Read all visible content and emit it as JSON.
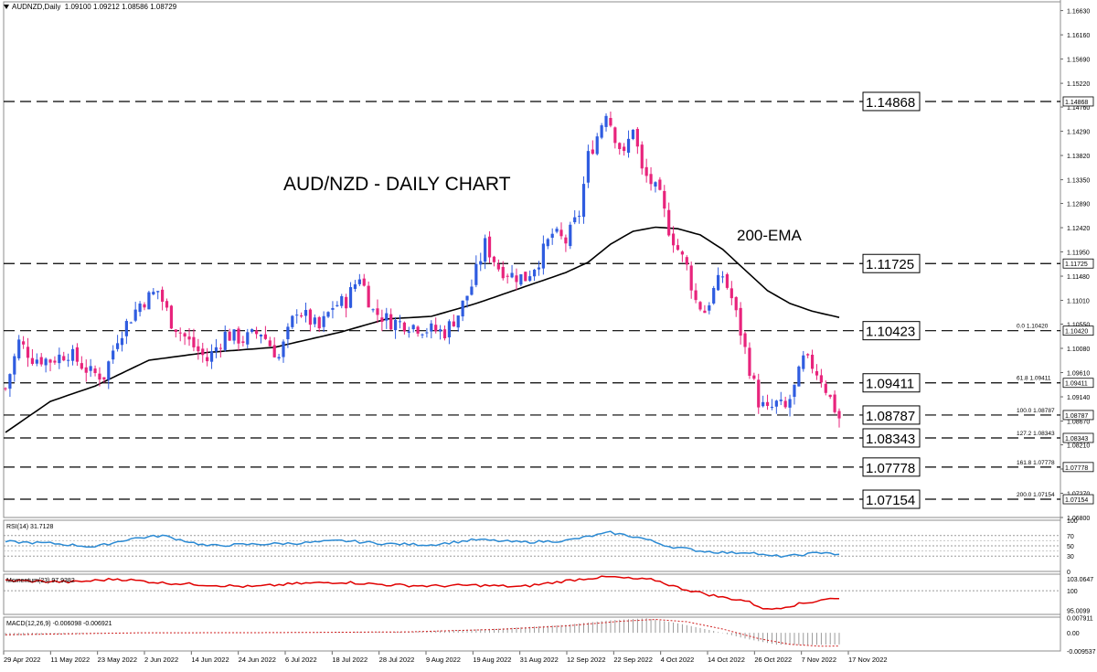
{
  "header": {
    "symbol": "AUDNZD,Daily",
    "ohlc": "1.09100 1.09212 1.08586 1.08729"
  },
  "colors": {
    "bull": "#2f5ce0",
    "bear": "#e8247c",
    "ema": "#000000",
    "rsi": "#2a8ad4",
    "momentum": "#e00000",
    "macd_signal": "#d02020",
    "macd_hist": "#909090",
    "level_line": "#000000"
  },
  "chart_data": [
    {
      "type": "candlestick",
      "title": "AUD/NZD - DAILY CHART",
      "ema_label": "200-EMA",
      "ylim": [
        1.068,
        1.168
      ],
      "y_ticks": [
        "1.16630",
        "1.16160",
        "1.15690",
        "1.15220",
        "1.14760",
        "1.14290",
        "1.13820",
        "1.13350",
        "1.12890",
        "1.12420",
        "1.11950",
        "1.11480",
        "1.11010",
        "1.10550",
        "1.10080",
        "1.09610",
        "1.09140",
        "1.08670",
        "1.08210",
        "1.07740",
        "1.07270",
        "1.06800"
      ],
      "x_labels": [
        "29 Apr 2022",
        "11 May 2022",
        "23 May 2022",
        "2 Jun 2022",
        "14 Jun 2022",
        "24 Jun 2022",
        "6 Jul 2022",
        "18 Jul 2022",
        "28 Jul 2022",
        "9 Aug 2022",
        "19 Aug 2022",
        "31 Aug 2022",
        "12 Sep 2022",
        "22 Sep 2022",
        "4 Oct 2022",
        "14 Oct 2022",
        "26 Oct 2022",
        "7 Nov 2022",
        "17 Nov 2022"
      ],
      "levels": [
        {
          "value": 1.14868,
          "label": "1.14868",
          "axis_label": "1.14868",
          "fib": ""
        },
        {
          "value": 1.11725,
          "label": "1.11725",
          "axis_label": "1.11725",
          "fib": ""
        },
        {
          "value": 1.10423,
          "label": "1.10423",
          "axis_label": "1.10420",
          "fib": "0.0 | 1.10420"
        },
        {
          "value": 1.09411,
          "label": "1.09411",
          "axis_label": "1.09411",
          "fib": "61.8 | 1.09411"
        },
        {
          "value": 1.08787,
          "label": "1.08787",
          "axis_label": "1.08787",
          "fib": "100.0 | 1.08787"
        },
        {
          "value": 1.08343,
          "label": "1.08343",
          "axis_label": "1.08343",
          "fib": "127.2 | 1.08343"
        },
        {
          "value": 1.07778,
          "label": "1.07778",
          "axis_label": "1.07778",
          "fib": "161.8 | 1.07778"
        },
        {
          "value": 1.07154,
          "label": "1.07154",
          "axis_label": "1.07154",
          "fib": "200.0 | 1.07154"
        }
      ],
      "current_price": "1.08729",
      "close_anchors": [
        [
          0,
          1.093
        ],
        [
          3,
          1.102
        ],
        [
          6,
          1.099
        ],
        [
          10,
          1.0985
        ],
        [
          14,
          1.1
        ],
        [
          19,
          1.096
        ],
        [
          22,
          1.0955
        ],
        [
          25,
          1.103
        ],
        [
          30,
          1.1095
        ],
        [
          34,
          1.112
        ],
        [
          37,
          1.106
        ],
        [
          41,
          1.102
        ],
        [
          45,
          1.0985
        ],
        [
          49,
          1.1035
        ],
        [
          53,
          1.1025
        ],
        [
          57,
          1.104
        ],
        [
          61,
          1.099
        ],
        [
          65,
          1.1085
        ],
        [
          70,
          1.1045
        ],
        [
          73,
          1.109
        ],
        [
          76,
          1.11
        ],
        [
          79,
          1.115
        ],
        [
          82,
          1.108
        ],
        [
          86,
          1.106
        ],
        [
          90,
          1.1055
        ],
        [
          94,
          1.1045
        ],
        [
          98,
          1.104
        ],
        [
          101,
          1.1075
        ],
        [
          104,
          1.113
        ],
        [
          107,
          1.121
        ],
        [
          110,
          1.1165
        ],
        [
          113,
          1.115
        ],
        [
          116,
          1.1145
        ],
        [
          119,
          1.118
        ],
        [
          122,
          1.123
        ],
        [
          125,
          1.1215
        ],
        [
          128,
          1.127
        ],
        [
          130,
          1.138
        ],
        [
          132,
          1.142
        ],
        [
          134,
          1.147
        ],
        [
          136,
          1.142
        ],
        [
          138,
          1.138
        ],
        [
          140,
          1.144
        ],
        [
          142,
          1.135
        ],
        [
          144,
          1.133
        ],
        [
          146,
          1.13
        ],
        [
          148,
          1.124
        ],
        [
          150,
          1.12
        ],
        [
          152,
          1.1165
        ],
        [
          154,
          1.11
        ],
        [
          156,
          1.108
        ],
        [
          158,
          1.112
        ],
        [
          160,
          1.115
        ],
        [
          162,
          1.1105
        ],
        [
          164,
          1.104
        ],
        [
          166,
          1.097
        ],
        [
          168,
          1.0905
        ],
        [
          170,
          1.0885
        ],
        [
          172,
          1.09
        ],
        [
          174,
          1.089
        ],
        [
          176,
          1.093
        ],
        [
          178,
          1.0985
        ],
        [
          180,
          1.0975
        ],
        [
          182,
          1.095
        ],
        [
          184,
          1.091
        ],
        [
          186,
          1.0873
        ]
      ],
      "ema_anchors": [
        [
          0,
          1.0845
        ],
        [
          10,
          1.0905
        ],
        [
          20,
          1.0935
        ],
        [
          32,
          1.0985
        ],
        [
          45,
          1.1
        ],
        [
          60,
          1.101
        ],
        [
          75,
          1.104
        ],
        [
          85,
          1.1065
        ],
        [
          95,
          1.107
        ],
        [
          105,
          1.1095
        ],
        [
          115,
          1.1125
        ],
        [
          125,
          1.1155
        ],
        [
          130,
          1.1175
        ],
        [
          135,
          1.121
        ],
        [
          140,
          1.1235
        ],
        [
          145,
          1.1243
        ],
        [
          150,
          1.124
        ],
        [
          155,
          1.1228
        ],
        [
          160,
          1.12
        ],
        [
          165,
          1.116
        ],
        [
          170,
          1.112
        ],
        [
          175,
          1.1095
        ],
        [
          180,
          1.108
        ],
        [
          186,
          1.1068
        ]
      ]
    },
    {
      "type": "line",
      "indicator": "RSI(14) 31.7128",
      "ylim": [
        0,
        100
      ],
      "y_ticks": [
        "100",
        "70",
        "50",
        "30",
        "0"
      ],
      "levels": [
        70,
        50,
        30
      ],
      "anchors": [
        [
          0,
          58
        ],
        [
          10,
          55
        ],
        [
          20,
          48
        ],
        [
          28,
          64
        ],
        [
          35,
          70
        ],
        [
          45,
          50
        ],
        [
          55,
          53
        ],
        [
          65,
          55
        ],
        [
          75,
          60
        ],
        [
          85,
          54
        ],
        [
          95,
          52
        ],
        [
          105,
          62
        ],
        [
          115,
          57
        ],
        [
          125,
          60
        ],
        [
          130,
          68
        ],
        [
          135,
          76
        ],
        [
          142,
          65
        ],
        [
          148,
          49
        ],
        [
          155,
          40
        ],
        [
          162,
          36
        ],
        [
          166,
          38
        ],
        [
          170,
          30
        ],
        [
          175,
          30
        ],
        [
          180,
          35
        ],
        [
          183,
          38
        ],
        [
          186,
          31.7
        ]
      ]
    },
    {
      "type": "line",
      "indicator": "Momentum(23) 97.9382",
      "ylim": [
        94.0,
        104.2
      ],
      "y_ticks": [
        "103.0647",
        "100",
        "95.0099"
      ],
      "anchors": [
        [
          0,
          102.6
        ],
        [
          15,
          102.2
        ],
        [
          25,
          103.0
        ],
        [
          35,
          102.0
        ],
        [
          45,
          101.5
        ],
        [
          55,
          101.0
        ],
        [
          65,
          101.8
        ],
        [
          75,
          102.2
        ],
        [
          85,
          101.5
        ],
        [
          95,
          101.2
        ],
        [
          105,
          101.4
        ],
        [
          115,
          101.0
        ],
        [
          125,
          102.5
        ],
        [
          130,
          103.2
        ],
        [
          135,
          103.5
        ],
        [
          140,
          103.0
        ],
        [
          145,
          102.7
        ],
        [
          150,
          100.8
        ],
        [
          155,
          99.5
        ],
        [
          160,
          98.3
        ],
        [
          165,
          97.5
        ],
        [
          170,
          95.2
        ],
        [
          175,
          96.2
        ],
        [
          180,
          97.2
        ],
        [
          183,
          98.0
        ],
        [
          186,
          97.9
        ]
      ]
    },
    {
      "type": "bar",
      "indicator": "MACD(12,26,9) -0.006098 -0.006921",
      "ylim": [
        -0.0095,
        0.0082
      ],
      "y_ticks": [
        "0.007911",
        "0.00",
        "-0.009537"
      ],
      "hist_anchors": [
        [
          0,
          -0.0015
        ],
        [
          30,
          0.0002
        ],
        [
          60,
          0.0001
        ],
        [
          90,
          0.0006
        ],
        [
          110,
          0.0022
        ],
        [
          125,
          0.0042
        ],
        [
          135,
          0.0066
        ],
        [
          143,
          0.0076
        ],
        [
          150,
          0.005
        ],
        [
          158,
          0.001
        ],
        [
          165,
          -0.003
        ],
        [
          172,
          -0.0062
        ],
        [
          180,
          -0.0063
        ],
        [
          186,
          -0.0061
        ]
      ],
      "signal_anchors": [
        [
          0,
          -0.001
        ],
        [
          30,
          0.0
        ],
        [
          60,
          0.0001
        ],
        [
          90,
          0.0005
        ],
        [
          110,
          0.0018
        ],
        [
          125,
          0.0036
        ],
        [
          137,
          0.006
        ],
        [
          145,
          0.007
        ],
        [
          152,
          0.0058
        ],
        [
          160,
          0.002
        ],
        [
          168,
          -0.003
        ],
        [
          175,
          -0.006
        ],
        [
          182,
          -0.007
        ],
        [
          186,
          -0.0069
        ]
      ]
    }
  ]
}
